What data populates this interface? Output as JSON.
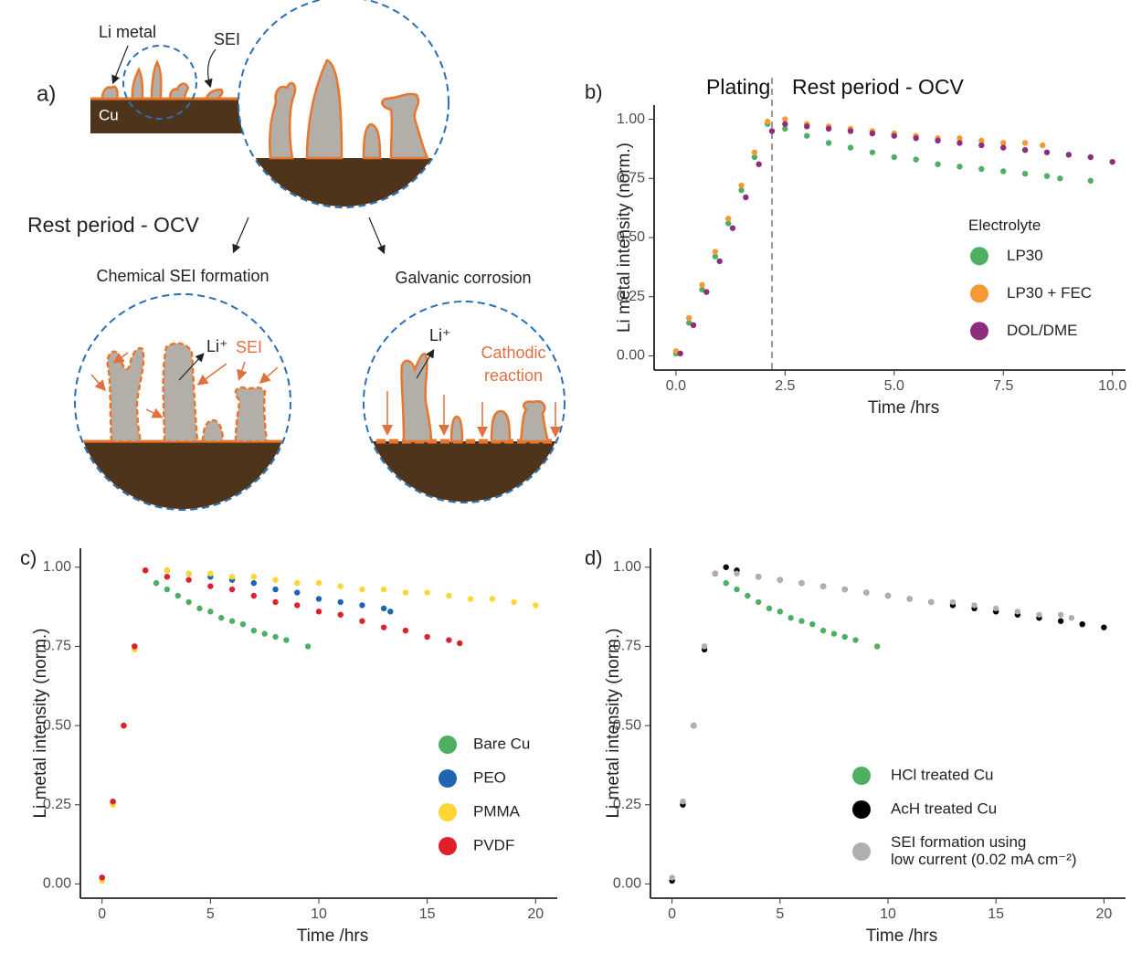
{
  "diagram": {
    "panel_label": "a)",
    "li_metal": "Li metal",
    "sei": "SEI",
    "cu": "Cu",
    "rest_period": "Rest period - OCV",
    "chemical": "Chemical SEI formation",
    "galvanic": "Galvanic corrosion",
    "li_ion_left": "Li⁺",
    "sei_left": "SEI",
    "li_ion_right": "Li⁺",
    "cathodic": [
      "Cathodic",
      "reaction"
    ]
  },
  "chart_data": [
    {
      "type": "scatter",
      "panel_label": "b)",
      "annotations": [
        "Plating",
        "Rest period - OCV"
      ],
      "vline_x": 2.2,
      "x_label": "Time /hrs",
      "y_label": "Li metal  intensity (norm.)",
      "legend_title": "Electrolyte",
      "legend": "center-right",
      "xlim": [
        -0.5,
        10.3
      ],
      "ylim": [
        -0.06,
        1.06
      ],
      "xticks": [
        {
          "value": 0,
          "label": "0.0"
        },
        2.5,
        {
          "value": 5,
          "label": "5.0"
        },
        7.5,
        {
          "value": 10,
          "label": "10.0"
        }
      ],
      "yticks": [
        {
          "value": 0,
          "label": "0.00"
        },
        0.25,
        {
          "value": 0.5,
          "label": "0.50"
        },
        0.75,
        {
          "value": 1,
          "label": "1.00"
        }
      ],
      "series": [
        {
          "name": "LP30",
          "color": "#4daf5f",
          "x": [
            0,
            0.3,
            0.6,
            0.9,
            1.2,
            1.5,
            1.8,
            2.1,
            2.5,
            3,
            3.5,
            4,
            4.5,
            5,
            5.5,
            6,
            6.5,
            7,
            7.5,
            8,
            8.5,
            8.8,
            9.5
          ],
          "values": [
            0.01,
            0.14,
            0.28,
            0.42,
            0.56,
            0.7,
            0.84,
            0.98,
            0.96,
            0.93,
            0.9,
            0.88,
            0.86,
            0.84,
            0.83,
            0.81,
            0.8,
            0.79,
            0.78,
            0.77,
            0.76,
            0.75,
            0.74
          ]
        },
        {
          "name": "LP30 + FEC",
          "color": "#f39a34",
          "x": [
            0,
            0.3,
            0.6,
            0.9,
            1.2,
            1.5,
            1.8,
            2.1,
            2.5,
            3,
            3.5,
            4,
            4.5,
            5,
            5.5,
            6,
            6.5,
            7,
            7.5,
            8,
            8.4
          ],
          "values": [
            0.02,
            0.16,
            0.3,
            0.44,
            0.58,
            0.72,
            0.86,
            0.99,
            1.0,
            0.98,
            0.97,
            0.96,
            0.95,
            0.94,
            0.93,
            0.92,
            0.92,
            0.91,
            0.9,
            0.9,
            0.89
          ]
        },
        {
          "name": "DOL/DME",
          "color": "#8e2c7e",
          "x": [
            0.1,
            0.4,
            0.7,
            1.0,
            1.3,
            1.6,
            1.9,
            2.2,
            2.5,
            3,
            3.5,
            4,
            4.5,
            5,
            5.5,
            6,
            6.5,
            7,
            7.5,
            8,
            8.5,
            9,
            9.5,
            10
          ],
          "values": [
            0.01,
            0.13,
            0.27,
            0.4,
            0.54,
            0.67,
            0.81,
            0.95,
            0.98,
            0.97,
            0.96,
            0.95,
            0.94,
            0.93,
            0.92,
            0.91,
            0.9,
            0.89,
            0.88,
            0.87,
            0.86,
            0.85,
            0.84,
            0.82
          ]
        }
      ]
    },
    {
      "type": "scatter",
      "panel_label": "c)",
      "x_label": "Time /hrs",
      "y_label": "Li metal  intensity (norm.)",
      "legend": "bottom-right",
      "xlim": [
        -1,
        21
      ],
      "ylim": [
        -0.045,
        1.06
      ],
      "xticks": [
        0,
        5,
        10,
        15,
        20
      ],
      "yticks": [
        {
          "value": 0,
          "label": "0.00"
        },
        0.25,
        {
          "value": 0.5,
          "label": "0.50"
        },
        0.75,
        {
          "value": 1,
          "label": "1.00"
        }
      ],
      "series": [
        {
          "name": "Bare Cu",
          "color": "#4daf5f",
          "x": [
            0,
            0.5,
            1,
            1.5,
            2,
            2.5,
            3,
            3.5,
            4,
            4.5,
            5,
            5.5,
            6,
            6.5,
            7,
            7.5,
            8,
            8.5,
            9.5
          ],
          "values": [
            0.02,
            0.26,
            0.5,
            0.75,
            0.99,
            0.95,
            0.93,
            0.91,
            0.89,
            0.87,
            0.86,
            0.84,
            0.83,
            0.82,
            0.8,
            0.79,
            0.78,
            0.77,
            0.75
          ]
        },
        {
          "name": "PEO",
          "color": "#1f64b0",
          "x": [
            0,
            0.5,
            1,
            1.5,
            2,
            3,
            4,
            5,
            6,
            7,
            8,
            9,
            10,
            11,
            12,
            13,
            13.3
          ],
          "values": [
            0.02,
            0.26,
            0.5,
            0.75,
            0.99,
            0.99,
            0.98,
            0.97,
            0.96,
            0.95,
            0.93,
            0.92,
            0.9,
            0.89,
            0.88,
            0.87,
            0.86
          ]
        },
        {
          "name": "PMMA",
          "color": "#fcd631",
          "x": [
            0,
            0.5,
            1,
            1.5,
            2,
            3,
            4,
            5,
            6,
            7,
            8,
            9,
            10,
            11,
            12,
            13,
            14,
            15,
            16,
            17,
            18,
            19,
            20
          ],
          "values": [
            0.01,
            0.25,
            0.5,
            0.74,
            0.99,
            0.99,
            0.98,
            0.98,
            0.97,
            0.97,
            0.96,
            0.95,
            0.95,
            0.94,
            0.93,
            0.93,
            0.92,
            0.92,
            0.91,
            0.9,
            0.9,
            0.89,
            0.88
          ]
        },
        {
          "name": "PVDF",
          "color": "#e0202a",
          "x": [
            0,
            0.5,
            1,
            1.5,
            2,
            3,
            4,
            5,
            6,
            7,
            8,
            9,
            10,
            11,
            12,
            13,
            14,
            15,
            16,
            16.5
          ],
          "values": [
            0.02,
            0.26,
            0.5,
            0.75,
            0.99,
            0.97,
            0.96,
            0.94,
            0.93,
            0.91,
            0.89,
            0.88,
            0.86,
            0.85,
            0.83,
            0.81,
            0.8,
            0.78,
            0.77,
            0.76
          ]
        }
      ]
    },
    {
      "type": "scatter",
      "panel_label": "d)",
      "x_label": "Time /hrs",
      "y_label": "Li metal  intensity (norm.)",
      "legend": "bottom-right",
      "xlim": [
        -1,
        21
      ],
      "ylim": [
        -0.045,
        1.06
      ],
      "xticks": [
        0,
        5,
        10,
        15,
        20
      ],
      "yticks": [
        {
          "value": 0,
          "label": "0.00"
        },
        0.25,
        {
          "value": 0.5,
          "label": "0.50"
        },
        0.75,
        {
          "value": 1,
          "label": "1.00"
        }
      ],
      "series": [
        {
          "name": "HCl treated Cu",
          "color": "#4daf5f",
          "x": [
            0,
            0.5,
            1,
            1.5,
            2,
            2.5,
            3,
            3.5,
            4,
            4.5,
            5,
            5.5,
            6,
            6.5,
            7,
            7.5,
            8,
            8.5,
            9.5
          ],
          "values": [
            0.01,
            0.26,
            0.5,
            0.75,
            0.98,
            0.95,
            0.93,
            0.91,
            0.89,
            0.87,
            0.86,
            0.84,
            0.83,
            0.82,
            0.8,
            0.79,
            0.78,
            0.77,
            0.75
          ]
        },
        {
          "name": "AcH treated Cu",
          "color": "#000000",
          "x": [
            0,
            0.5,
            1,
            1.5,
            2,
            2.5,
            3,
            4,
            5,
            6,
            7,
            8,
            9,
            10,
            11,
            12,
            13,
            14,
            15,
            16,
            17,
            18,
            19,
            20
          ],
          "values": [
            0.01,
            0.25,
            0.5,
            0.74,
            0.98,
            1.0,
            0.99,
            0.97,
            0.96,
            0.95,
            0.94,
            0.93,
            0.92,
            0.91,
            0.9,
            0.89,
            0.88,
            0.87,
            0.86,
            0.85,
            0.84,
            0.83,
            0.82,
            0.81
          ]
        },
        {
          "name": "SEI formation using\nlow current (0.02 mA cm⁻²)",
          "color": "#b0b0b0",
          "x": [
            0,
            0.5,
            1,
            1.5,
            2,
            3,
            4,
            5,
            6,
            7,
            8,
            9,
            10,
            11,
            12,
            13,
            14,
            15,
            16,
            17,
            18,
            18.5
          ],
          "values": [
            0.02,
            0.26,
            0.5,
            0.75,
            0.98,
            0.98,
            0.97,
            0.96,
            0.95,
            0.94,
            0.93,
            0.92,
            0.91,
            0.9,
            0.89,
            0.89,
            0.88,
            0.87,
            0.86,
            0.85,
            0.85,
            0.84
          ]
        }
      ]
    }
  ]
}
